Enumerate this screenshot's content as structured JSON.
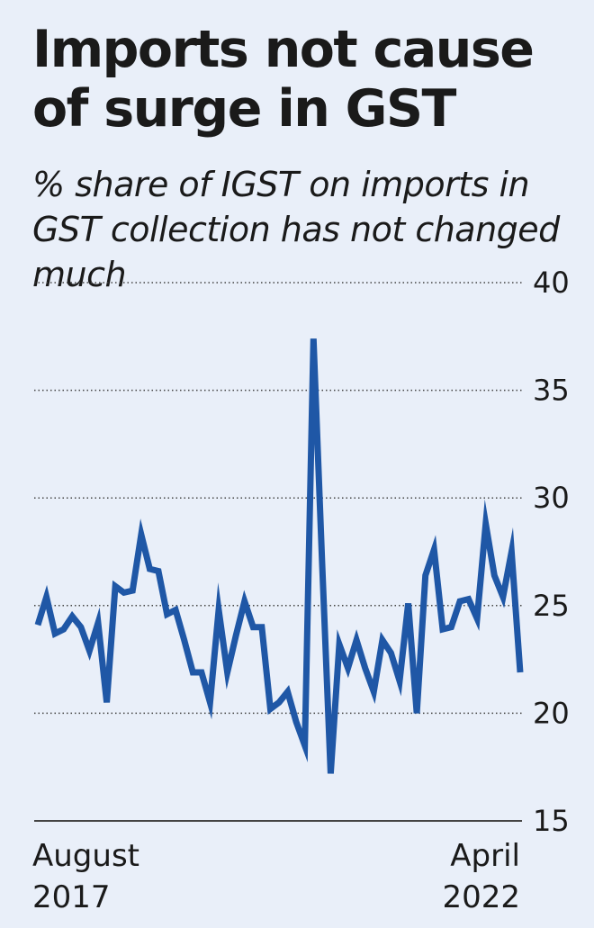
{
  "title": "Imports not cause of surge in GST",
  "subtitle": "% share of IGST on imports in GST collection has not changed much",
  "colors": {
    "background": "#e9eff9",
    "line": "#1f57a6",
    "grid": "#444444"
  },
  "x_labels": {
    "start": {
      "line1": "August",
      "line2": "2017"
    },
    "end": {
      "line1": "April",
      "line2": "2022"
    }
  },
  "chart_data": {
    "type": "line",
    "title": "Imports not cause of surge in GST",
    "subtitle": "% share of IGST on imports in GST collection has not changed much",
    "xlabel": "",
    "ylabel": "",
    "x_start": "August 2017",
    "x_end": "April 2022",
    "ylim": [
      15,
      40
    ],
    "yticks": [
      15,
      20,
      25,
      30,
      35,
      40
    ],
    "grid": "horizontal dotted",
    "y_axis_position": "right",
    "series": [
      {
        "values": [
          24.1,
          25.4,
          23.7,
          23.9,
          24.5,
          24.0,
          22.9,
          24.2,
          20.5,
          25.9,
          25.6,
          25.7,
          28.3,
          26.7,
          26.6,
          24.6,
          24.8,
          23.4,
          21.9,
          21.9,
          20.5,
          24.8,
          21.9,
          23.6,
          25.2,
          24.0,
          24.0,
          20.2,
          20.5,
          21.0,
          19.6,
          18.5,
          37.4,
          27.0,
          17.2,
          23.2,
          22.1,
          23.4,
          22.1,
          21.0,
          23.4,
          22.8,
          21.5,
          25.1,
          20.0,
          26.4,
          27.6,
          23.9,
          24.0,
          25.2,
          25.3,
          24.4,
          28.8,
          26.4,
          25.4,
          27.5,
          21.9
        ]
      }
    ]
  }
}
